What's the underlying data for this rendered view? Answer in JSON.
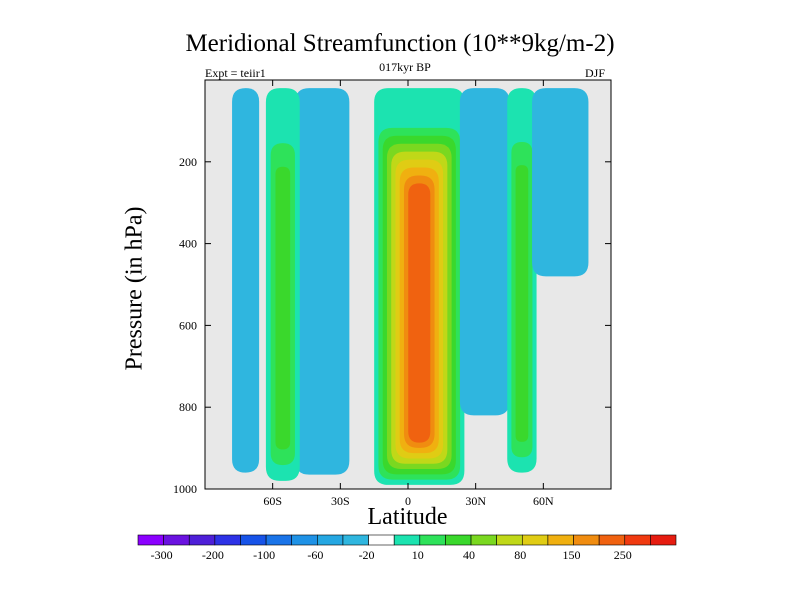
{
  "chart_data": {
    "type": "heatmap",
    "title": "Meridional Streamfunction (10**9kg/m-2)",
    "subtitle_left": "Expt = teiir1",
    "subtitle_center": "017kyr BP",
    "subtitle_right": "DJF",
    "xlabel": "Latitude",
    "ylabel": "Pressure (in hPa)",
    "xlim": [
      -90,
      90
    ],
    "ylim": [
      1000,
      0
    ],
    "y_inverted": true,
    "x_ticks": [
      {
        "value": -60,
        "label": "60S"
      },
      {
        "value": -30,
        "label": "30S"
      },
      {
        "value": 0,
        "label": "0"
      },
      {
        "value": 30,
        "label": "30N"
      },
      {
        "value": 60,
        "label": "60N"
      }
    ],
    "y_ticks": [
      200,
      400,
      600,
      800,
      1000
    ],
    "background_color": "#e8e8e8",
    "colorbar": {
      "orientation": "horizontal",
      "colors": [
        "#8b00ff",
        "#6a12e0",
        "#4e1fd8",
        "#2d32e6",
        "#1753e8",
        "#1a74e8",
        "#1f92e6",
        "#25a7e2",
        "#2fb6df",
        "#ffffff",
        "#1ce3b0",
        "#2ee25a",
        "#3ad82c",
        "#7ad820",
        "#c0d818",
        "#e0cc14",
        "#f0b010",
        "#f08c10",
        "#f06210",
        "#f03a10",
        "#e61c10"
      ],
      "tick_labels": [
        "-300",
        "-200",
        "-100",
        "-60",
        "-20",
        "10",
        "40",
        "80",
        "150",
        "250"
      ]
    },
    "regions": [
      {
        "name": "neg-band-polar-south",
        "lat": [
          -78,
          -66
        ],
        "p_top": 20,
        "p_bottom": 960,
        "peak": -20
      },
      {
        "name": "neg-band-30S",
        "lat": [
          -50,
          -26
        ],
        "p_top": 20,
        "p_bottom": 965,
        "peak": -20
      },
      {
        "name": "pos-band-60S",
        "lat": [
          -63,
          -48
        ],
        "p_top": 20,
        "p_bottom": 980,
        "peak": 40
      },
      {
        "name": "hadley-cell",
        "lat": [
          -15,
          25
        ],
        "p_top": 20,
        "p_bottom": 990,
        "peak": 250
      },
      {
        "name": "neg-band-25N",
        "lat": [
          23,
          45
        ],
        "p_top": 20,
        "p_bottom": 820,
        "peak": -20
      },
      {
        "name": "pos-band-50N",
        "lat": [
          44,
          57
        ],
        "p_top": 20,
        "p_bottom": 960,
        "peak": 40
      },
      {
        "name": "neg-band-north",
        "lat": [
          55,
          80
        ],
        "p_top": 20,
        "p_bottom": 480,
        "peak": -20
      }
    ]
  }
}
